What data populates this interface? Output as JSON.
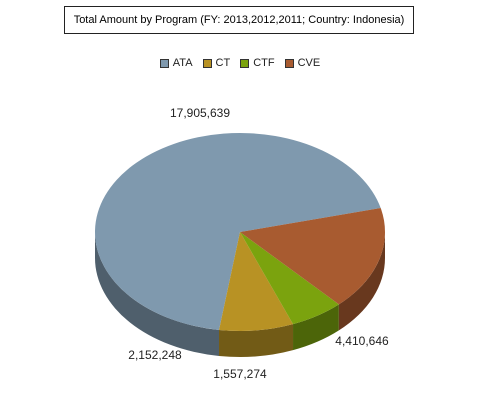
{
  "chart_data": {
    "type": "pie",
    "title": "Total Amount by Program (FY: 2013,2012,2011; Country: Indonesia)",
    "legend_position": "top-center",
    "three_d": true,
    "categories": [
      "ATA",
      "CT",
      "CTF",
      "CVE"
    ],
    "values": [
      17905639,
      2152248,
      1557274,
      4410646
    ],
    "value_labels": [
      "17,905,639",
      "2,152,248",
      "1,557,274",
      "4,410,646"
    ],
    "colors": [
      "#7f99ae",
      "#b89224",
      "#7ba30e",
      "#a85b30"
    ]
  }
}
